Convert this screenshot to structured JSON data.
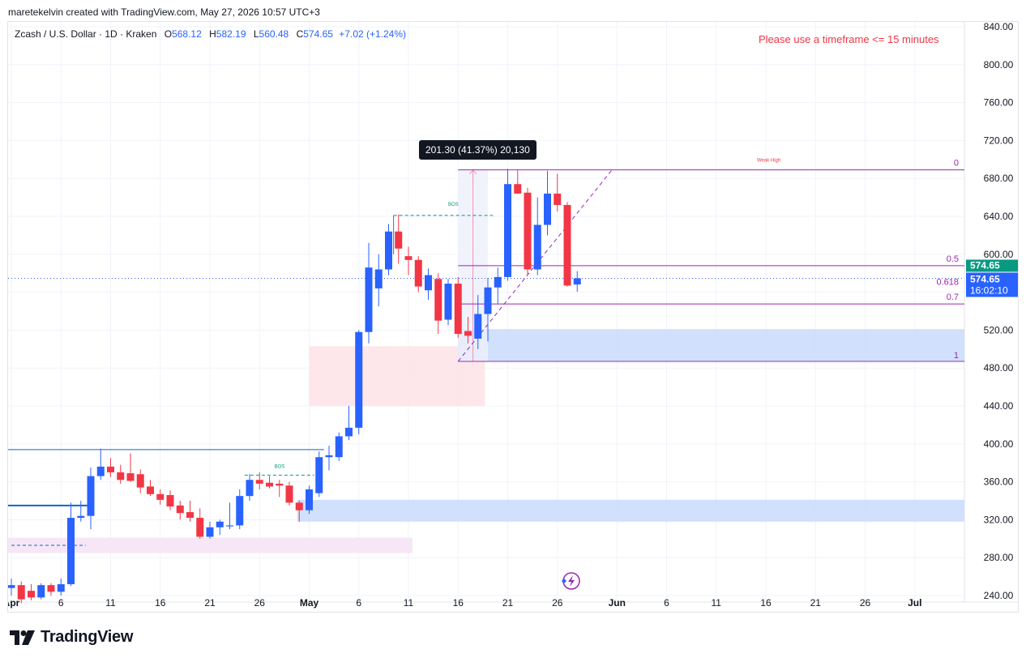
{
  "credit": "maretekelvin created with TradingView.com, May 27, 2026 10:57 UTC+3",
  "legend": {
    "symbol": "Zcash / U.S. Dollar · 1D · Kraken",
    "o_label": "O",
    "o": "568.12",
    "h_label": "H",
    "h": "582.19",
    "l_label": "L",
    "l": "560.48",
    "c_label": "C",
    "c": "574.65",
    "change": "+7.02 (+1.24%)"
  },
  "warning": "Please use a timeframe <= 15 minutes",
  "brand": "TradingView",
  "measure_tooltip": "201.30 (41.37%) 20,130",
  "price_tags": {
    "last_price": "574.65",
    "close_price": "574.65",
    "countdown": "16:02:10"
  },
  "annotations": {
    "weak_high": "Weak High",
    "bos_1": "BOS",
    "bos_2": "BOS",
    "fib_0": "0",
    "fib_05": "0.5",
    "fib_0618": "0.618",
    "fib_07": "0.7",
    "fib_1": "1"
  },
  "colors": {
    "up": "#2962ff",
    "down": "#f23645",
    "fib": "#9c27b0",
    "bos": "#089981",
    "horizontal_line": "#1565c0",
    "demand_zone": "#c9dafb",
    "supply_zone": "#fde3e6",
    "pink_zone": "#f6e6f6"
  },
  "chart_data": {
    "type": "candlestick",
    "y_axis": {
      "ticks": [
        "240.00",
        "280.00",
        "320.00",
        "360.00",
        "400.00",
        "440.00",
        "480.00",
        "520.00",
        "560.00",
        "600.00",
        "640.00",
        "680.00",
        "720.00",
        "760.00",
        "800.00",
        "840.00"
      ],
      "range": [
        218,
        842
      ]
    },
    "x_axis": {
      "ticks": [
        {
          "label": "Apr",
          "day": 0
        },
        {
          "label": "6",
          "day": 5
        },
        {
          "label": "11",
          "day": 10
        },
        {
          "label": "16",
          "day": 15
        },
        {
          "label": "21",
          "day": 20
        },
        {
          "label": "26",
          "day": 25
        },
        {
          "label": "May",
          "day": 30
        },
        {
          "label": "6",
          "day": 35
        },
        {
          "label": "11",
          "day": 40
        },
        {
          "label": "16",
          "day": 45
        },
        {
          "label": "21",
          "day": 50
        },
        {
          "label": "26",
          "day": 55
        },
        {
          "label": "Jun",
          "day": 61
        },
        {
          "label": "6",
          "day": 66
        },
        {
          "label": "11",
          "day": 71
        },
        {
          "label": "16",
          "day": 76
        },
        {
          "label": "21",
          "day": 81
        },
        {
          "label": "26",
          "day": 86
        },
        {
          "label": "Jul",
          "day": 91
        }
      ]
    },
    "candles": [
      {
        "d": 0,
        "o": 248,
        "h": 258,
        "l": 240,
        "c": 251
      },
      {
        "d": 1,
        "o": 251,
        "h": 255,
        "l": 232,
        "c": 236
      },
      {
        "d": 2,
        "o": 245,
        "h": 252,
        "l": 235,
        "c": 238
      },
      {
        "d": 3,
        "o": 238,
        "h": 253,
        "l": 236,
        "c": 251
      },
      {
        "d": 4,
        "o": 251,
        "h": 253,
        "l": 240,
        "c": 244
      },
      {
        "d": 5,
        "o": 244,
        "h": 258,
        "l": 240,
        "c": 252
      },
      {
        "d": 6,
        "o": 252,
        "h": 338,
        "l": 250,
        "c": 322
      },
      {
        "d": 7,
        "o": 322,
        "h": 340,
        "l": 318,
        "c": 324
      },
      {
        "d": 8,
        "o": 324,
        "h": 375,
        "l": 310,
        "c": 366
      },
      {
        "d": 9,
        "o": 366,
        "h": 395,
        "l": 362,
        "c": 376
      },
      {
        "d": 10,
        "o": 376,
        "h": 385,
        "l": 365,
        "c": 370
      },
      {
        "d": 11,
        "o": 370,
        "h": 378,
        "l": 358,
        "c": 362
      },
      {
        "d": 12,
        "o": 369,
        "h": 390,
        "l": 360,
        "c": 361
      },
      {
        "d": 13,
        "o": 368,
        "h": 373,
        "l": 348,
        "c": 354
      },
      {
        "d": 14,
        "o": 355,
        "h": 362,
        "l": 345,
        "c": 347
      },
      {
        "d": 15,
        "o": 347,
        "h": 352,
        "l": 336,
        "c": 341
      },
      {
        "d": 16,
        "o": 346,
        "h": 351,
        "l": 330,
        "c": 334
      },
      {
        "d": 17,
        "o": 335,
        "h": 340,
        "l": 320,
        "c": 327
      },
      {
        "d": 18,
        "o": 328,
        "h": 340,
        "l": 318,
        "c": 322
      },
      {
        "d": 19,
        "o": 322,
        "h": 332,
        "l": 300,
        "c": 302
      },
      {
        "d": 20,
        "o": 302,
        "h": 318,
        "l": 300,
        "c": 312
      },
      {
        "d": 21,
        "o": 312,
        "h": 320,
        "l": 304,
        "c": 318
      },
      {
        "d": 22,
        "o": 313,
        "h": 338,
        "l": 310,
        "c": 314
      },
      {
        "d": 23,
        "o": 314,
        "h": 352,
        "l": 310,
        "c": 345
      },
      {
        "d": 24,
        "o": 345,
        "h": 368,
        "l": 340,
        "c": 362
      },
      {
        "d": 25,
        "o": 362,
        "h": 370,
        "l": 352,
        "c": 358
      },
      {
        "d": 26,
        "o": 359,
        "h": 366,
        "l": 353,
        "c": 355
      },
      {
        "d": 27,
        "o": 358,
        "h": 362,
        "l": 344,
        "c": 356
      },
      {
        "d": 28,
        "o": 356,
        "h": 360,
        "l": 335,
        "c": 338
      },
      {
        "d": 29,
        "o": 338,
        "h": 340,
        "l": 318,
        "c": 330
      },
      {
        "d": 30,
        "o": 330,
        "h": 356,
        "l": 326,
        "c": 352
      },
      {
        "d": 31,
        "o": 348,
        "h": 392,
        "l": 344,
        "c": 386
      },
      {
        "d": 32,
        "o": 386,
        "h": 398,
        "l": 372,
        "c": 388
      },
      {
        "d": 33,
        "o": 386,
        "h": 412,
        "l": 382,
        "c": 408
      },
      {
        "d": 34,
        "o": 408,
        "h": 440,
        "l": 404,
        "c": 417
      },
      {
        "d": 35,
        "o": 417,
        "h": 520,
        "l": 410,
        "c": 518
      },
      {
        "d": 36,
        "o": 518,
        "h": 612,
        "l": 506,
        "c": 586
      },
      {
        "d": 37,
        "o": 564,
        "h": 600,
        "l": 545,
        "c": 584
      },
      {
        "d": 38,
        "o": 584,
        "h": 632,
        "l": 578,
        "c": 624
      },
      {
        "d": 39,
        "o": 624,
        "h": 642,
        "l": 590,
        "c": 606
      },
      {
        "d": 40,
        "o": 598,
        "h": 608,
        "l": 578,
        "c": 594
      },
      {
        "d": 41,
        "o": 594,
        "h": 598,
        "l": 560,
        "c": 566
      },
      {
        "d": 42,
        "o": 562,
        "h": 585,
        "l": 552,
        "c": 578
      },
      {
        "d": 43,
        "o": 574,
        "h": 580,
        "l": 516,
        "c": 530
      },
      {
        "d": 44,
        "o": 531,
        "h": 574,
        "l": 525,
        "c": 569
      },
      {
        "d": 45,
        "o": 569,
        "h": 576,
        "l": 512,
        "c": 516
      },
      {
        "d": 46,
        "o": 519,
        "h": 534,
        "l": 506,
        "c": 514
      },
      {
        "d": 47,
        "o": 511,
        "h": 557,
        "l": 500,
        "c": 537
      },
      {
        "d": 48,
        "o": 537,
        "h": 575,
        "l": 508,
        "c": 565
      },
      {
        "d": 49,
        "o": 565,
        "h": 586,
        "l": 548,
        "c": 576
      },
      {
        "d": 50,
        "o": 576,
        "h": 690,
        "l": 572,
        "c": 674
      },
      {
        "d": 51,
        "o": 674,
        "h": 689,
        "l": 664,
        "c": 664
      },
      {
        "d": 52,
        "o": 665,
        "h": 670,
        "l": 578,
        "c": 584
      },
      {
        "d": 53,
        "o": 584,
        "h": 660,
        "l": 578,
        "c": 631
      },
      {
        "d": 54,
        "o": 631,
        "h": 688,
        "l": 620,
        "c": 664
      },
      {
        "d": 55,
        "o": 664,
        "h": 685,
        "l": 645,
        "c": 652
      },
      {
        "d": 56,
        "o": 652,
        "h": 655,
        "l": 566,
        "c": 567
      },
      {
        "d": 57,
        "o": 568.12,
        "h": 582.19,
        "l": 560.48,
        "c": 574.65
      }
    ],
    "fibonacci": {
      "level_0": 689,
      "level_1": 487
    },
    "measure": {
      "from_day": 45,
      "to_day": 48,
      "from_price": 487,
      "to_price": 689
    }
  }
}
